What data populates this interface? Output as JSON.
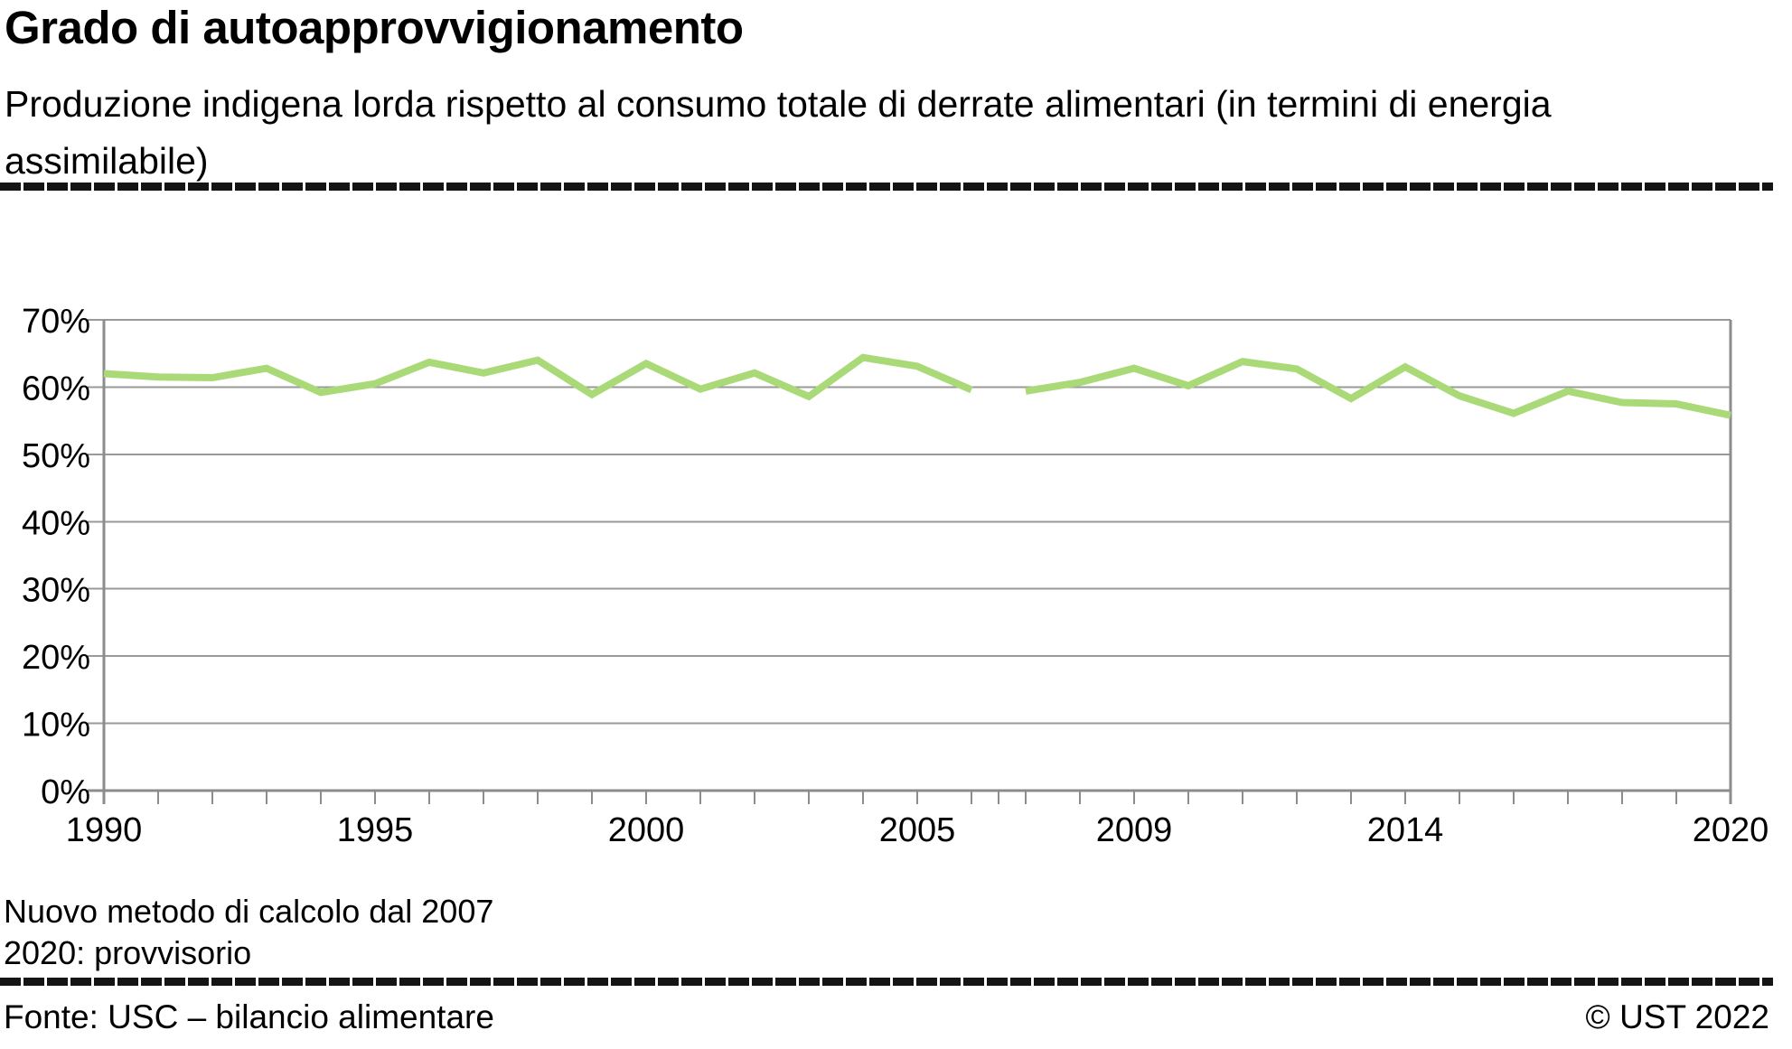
{
  "header": {
    "title": "Grado di autoapprovvigionamento",
    "subtitle": "Produzione indigena lorda rispetto al consumo totale di derrate alimentari (in termini di energia assimilabile)"
  },
  "footnotes": {
    "line1": "Nuovo metodo di calcolo dal 2007",
    "line2": "2020: provvisorio"
  },
  "footer": {
    "source": "Fonte: USC – bilancio alimentare",
    "copyright": "© UST 2022"
  },
  "chart_data": {
    "type": "line",
    "title": "Grado di autoapprovvigionamento",
    "xlabel": "",
    "ylabel": "",
    "unit": "%",
    "ylim": [
      0,
      70
    ],
    "ytick_step": 10,
    "ytick_labels": [
      "0%",
      "10%",
      "20%",
      "30%",
      "40%",
      "50%",
      "60%",
      "70%"
    ],
    "x_range": [
      1990,
      2020
    ],
    "xtick_every_year": true,
    "xtick_labeled_years": [
      1990,
      1995,
      2000,
      2005,
      2009,
      2014,
      2020
    ],
    "grid": true,
    "legend": "none",
    "line_color": "#aada78",
    "grid_color": "#9a9a9a",
    "axis_color": "#8c8c8c",
    "series_break_between": [
      2006,
      2007
    ],
    "segments": [
      {
        "id": "1990-2006",
        "years": [
          1990,
          1991,
          1992,
          1993,
          1994,
          1995,
          1996,
          1997,
          1998,
          1999,
          2000,
          2001,
          2002,
          2003,
          2004,
          2005,
          2006
        ],
        "values": [
          62.0,
          61.5,
          61.4,
          62.8,
          59.2,
          60.5,
          63.7,
          62.1,
          64.0,
          58.9,
          63.5,
          59.7,
          62.1,
          58.6,
          64.4,
          63.1,
          59.6
        ]
      },
      {
        "id": "2007-2020",
        "years": [
          2007,
          2008,
          2009,
          2010,
          2011,
          2012,
          2013,
          2014,
          2015,
          2016,
          2017,
          2018,
          2019,
          2020
        ],
        "values": [
          59.4,
          60.7,
          62.8,
          60.2,
          63.8,
          62.7,
          58.3,
          63.0,
          58.7,
          56.1,
          59.4,
          57.7,
          57.5,
          55.8
        ]
      }
    ],
    "annotations": [
      "Nuovo metodo di calcolo dal 2007",
      "2020: provvisorio"
    ]
  }
}
